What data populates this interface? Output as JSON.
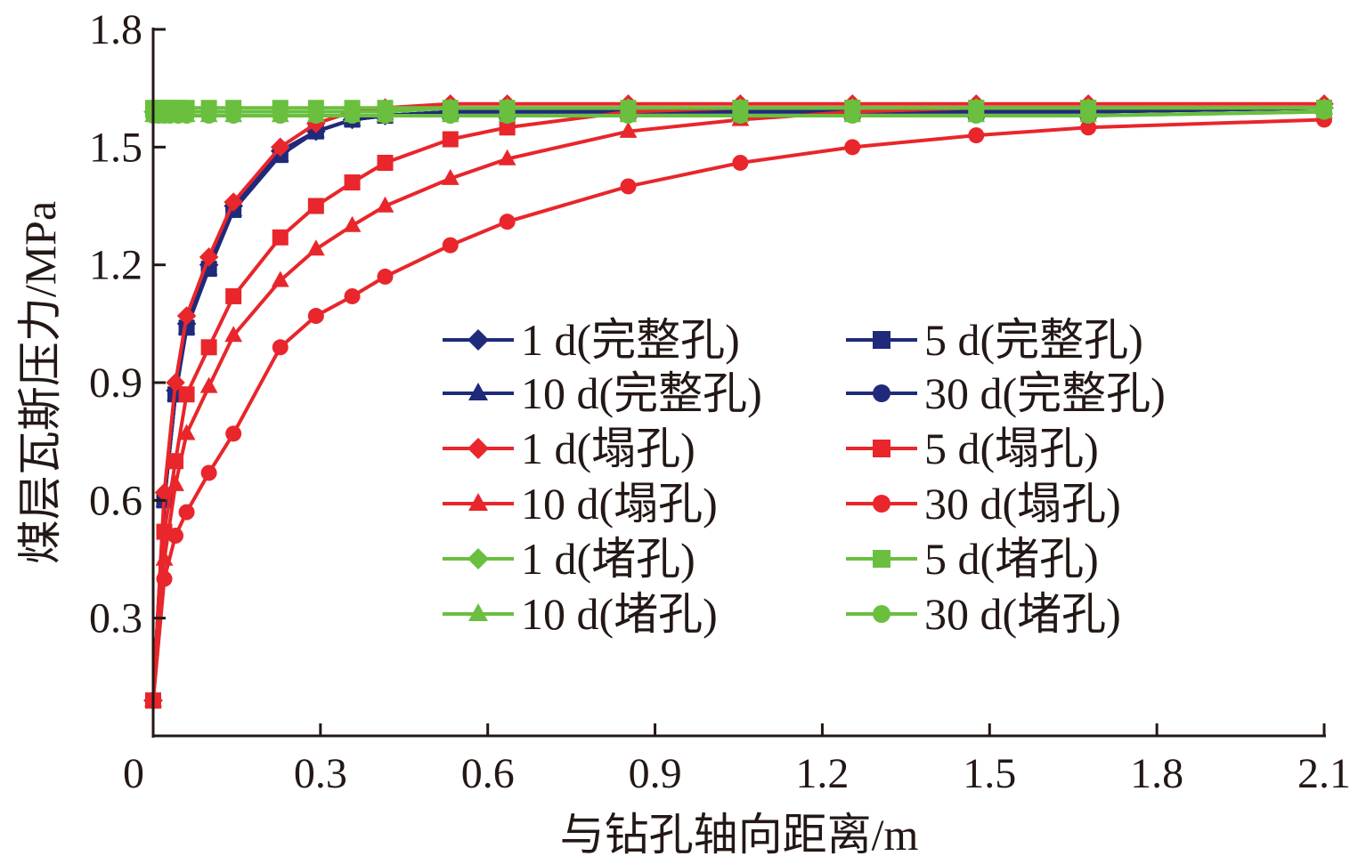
{
  "chart_data": {
    "type": "line",
    "xlabel": "与钻孔轴向距离/m",
    "ylabel": "煤层瓦斯压力/MPa",
    "xlim": [
      0,
      2.1
    ],
    "ylim": [
      0,
      1.8
    ],
    "xticks": [
      "0",
      "0.3",
      "0.6",
      "0.9",
      "1.2",
      "1.5",
      "1.8",
      "2.1"
    ],
    "yticks": [
      "0.3",
      "0.6",
      "0.9",
      "1.2",
      "1.5",
      "1.8"
    ],
    "grid": false,
    "legend_position": "center-right",
    "colors": {
      "complete": "#1f2a7a",
      "collapse": "#e8262b",
      "blocked": "#6abf3f"
    },
    "series": [
      {
        "name": "1 d(完整孔)",
        "color": "#1f2a7a",
        "marker": "diamond",
        "x": [
          0,
          0.02,
          0.04,
          0.06,
          0.1,
          0.144,
          0.228,
          0.292,
          0.357,
          0.416,
          0.533,
          0.635,
          0.852,
          1.053,
          1.254,
          1.476,
          1.677,
          2.1
        ],
        "y": [
          0.09,
          0.6,
          0.88,
          1.05,
          1.2,
          1.35,
          1.49,
          1.54,
          1.57,
          1.58,
          1.59,
          1.59,
          1.59,
          1.59,
          1.59,
          1.59,
          1.59,
          1.6
        ]
      },
      {
        "name": "5 d(完整孔)",
        "color": "#1f2a7a",
        "marker": "square",
        "x": [
          0,
          0.02,
          0.04,
          0.06,
          0.1,
          0.144,
          0.228,
          0.292,
          0.357,
          0.416,
          0.533,
          0.635,
          0.852,
          1.053,
          1.254,
          1.476,
          1.677,
          2.1
        ],
        "y": [
          0.09,
          0.6,
          0.87,
          1.04,
          1.19,
          1.34,
          1.48,
          1.54,
          1.57,
          1.58,
          1.59,
          1.59,
          1.59,
          1.59,
          1.59,
          1.59,
          1.59,
          1.6
        ]
      },
      {
        "name": "10 d(完整孔)",
        "color": "#1f2a7a",
        "marker": "triangle",
        "x": [
          0,
          0.02,
          0.04,
          0.06,
          0.1,
          0.144,
          0.228,
          0.292,
          0.357,
          0.416,
          0.533,
          0.635,
          0.852,
          1.053,
          1.254,
          1.476,
          1.677,
          2.1
        ],
        "y": [
          0.09,
          0.6,
          0.87,
          1.04,
          1.19,
          1.34,
          1.48,
          1.54,
          1.57,
          1.58,
          1.59,
          1.59,
          1.59,
          1.59,
          1.59,
          1.59,
          1.59,
          1.6
        ]
      },
      {
        "name": "30 d(完整孔)",
        "color": "#1f2a7a",
        "marker": "circle",
        "x": [
          0,
          0.02,
          0.04,
          0.06,
          0.1,
          0.144,
          0.228,
          0.292,
          0.357,
          0.416,
          0.533,
          0.635,
          0.852,
          1.053,
          1.254,
          1.476,
          1.677,
          2.1
        ],
        "y": [
          0.09,
          0.6,
          0.87,
          1.04,
          1.19,
          1.34,
          1.48,
          1.54,
          1.57,
          1.58,
          1.59,
          1.59,
          1.59,
          1.59,
          1.59,
          1.59,
          1.59,
          1.6
        ]
      },
      {
        "name": "1 d(塌孔)",
        "color": "#e8262b",
        "marker": "diamond",
        "x": [
          0,
          0.02,
          0.04,
          0.06,
          0.1,
          0.144,
          0.228,
          0.292,
          0.357,
          0.416,
          0.533,
          0.635,
          0.852,
          1.053,
          1.254,
          1.476,
          1.677,
          2.1
        ],
        "y": [
          0.09,
          0.62,
          0.9,
          1.07,
          1.22,
          1.36,
          1.5,
          1.56,
          1.59,
          1.6,
          1.61,
          1.61,
          1.61,
          1.61,
          1.61,
          1.61,
          1.61,
          1.61
        ]
      },
      {
        "name": "5 d(塌孔)",
        "color": "#e8262b",
        "marker": "square",
        "x": [
          0,
          0.02,
          0.04,
          0.06,
          0.1,
          0.144,
          0.228,
          0.292,
          0.357,
          0.416,
          0.533,
          0.635,
          0.852,
          1.053,
          1.254,
          1.476,
          1.677,
          2.1
        ],
        "y": [
          0.09,
          0.52,
          0.7,
          0.87,
          0.99,
          1.12,
          1.27,
          1.35,
          1.41,
          1.46,
          1.52,
          1.55,
          1.59,
          1.6,
          1.6,
          1.6,
          1.6,
          1.6
        ]
      },
      {
        "name": "10 d(塌孔)",
        "color": "#e8262b",
        "marker": "triangle",
        "x": [
          0,
          0.02,
          0.04,
          0.06,
          0.1,
          0.144,
          0.228,
          0.292,
          0.357,
          0.416,
          0.533,
          0.635,
          0.852,
          1.053,
          1.254,
          1.476,
          1.677,
          2.1
        ],
        "y": [
          0.09,
          0.45,
          0.64,
          0.77,
          0.89,
          1.02,
          1.16,
          1.24,
          1.3,
          1.35,
          1.42,
          1.47,
          1.54,
          1.57,
          1.59,
          1.6,
          1.6,
          1.6
        ]
      },
      {
        "name": "30 d(塌孔)",
        "color": "#e8262b",
        "marker": "circle",
        "x": [
          0,
          0.02,
          0.04,
          0.06,
          0.1,
          0.144,
          0.228,
          0.292,
          0.357,
          0.416,
          0.533,
          0.635,
          0.852,
          1.053,
          1.254,
          1.476,
          1.677,
          2.1
        ],
        "y": [
          0.09,
          0.4,
          0.51,
          0.57,
          0.67,
          0.77,
          0.99,
          1.07,
          1.12,
          1.17,
          1.25,
          1.31,
          1.4,
          1.46,
          1.5,
          1.53,
          1.55,
          1.57
        ]
      },
      {
        "name": "1 d(堵孔)",
        "color": "#6abf3f",
        "marker": "diamond",
        "x": [
          0,
          0.01,
          0.02,
          0.03,
          0.045,
          0.06,
          0.1,
          0.144,
          0.228,
          0.292,
          0.357,
          0.416,
          0.533,
          0.635,
          0.852,
          1.053,
          1.254,
          1.476,
          1.677,
          2.1
        ],
        "y": [
          1.59,
          1.59,
          1.59,
          1.59,
          1.59,
          1.59,
          1.59,
          1.59,
          1.59,
          1.59,
          1.59,
          1.59,
          1.6,
          1.6,
          1.6,
          1.6,
          1.6,
          1.6,
          1.6,
          1.6
        ]
      },
      {
        "name": "5 d(堵孔)",
        "color": "#6abf3f",
        "marker": "square",
        "x": [
          0,
          0.01,
          0.02,
          0.03,
          0.045,
          0.06,
          0.1,
          0.144,
          0.228,
          0.292,
          0.357,
          0.416,
          0.533,
          0.635,
          0.852,
          1.053,
          1.254,
          1.476,
          1.677,
          2.1
        ],
        "y": [
          1.6,
          1.6,
          1.6,
          1.6,
          1.6,
          1.6,
          1.6,
          1.6,
          1.6,
          1.6,
          1.6,
          1.6,
          1.6,
          1.6,
          1.6,
          1.6,
          1.6,
          1.6,
          1.6,
          1.6
        ]
      },
      {
        "name": "10 d(堵孔)",
        "color": "#6abf3f",
        "marker": "triangle",
        "x": [
          0,
          0.01,
          0.02,
          0.03,
          0.045,
          0.06,
          0.1,
          0.144,
          0.228,
          0.292,
          0.357,
          0.416,
          0.533,
          0.635,
          0.852,
          1.053,
          1.254,
          1.476,
          1.677,
          2.1
        ],
        "y": [
          1.58,
          1.58,
          1.58,
          1.58,
          1.58,
          1.58,
          1.58,
          1.58,
          1.58,
          1.58,
          1.58,
          1.58,
          1.58,
          1.58,
          1.58,
          1.58,
          1.58,
          1.58,
          1.58,
          1.59
        ]
      },
      {
        "name": "30 d(堵孔)",
        "color": "#6abf3f",
        "marker": "circle",
        "x": [
          0,
          0.01,
          0.02,
          0.03,
          0.045,
          0.06,
          0.1,
          0.144,
          0.228,
          0.292,
          0.357,
          0.416,
          0.533,
          0.635,
          0.852,
          1.053,
          1.254,
          1.476,
          1.677,
          2.1
        ],
        "y": [
          1.58,
          1.58,
          1.58,
          1.58,
          1.58,
          1.58,
          1.58,
          1.58,
          1.58,
          1.58,
          1.58,
          1.58,
          1.58,
          1.58,
          1.58,
          1.58,
          1.58,
          1.58,
          1.58,
          1.59
        ]
      }
    ]
  }
}
